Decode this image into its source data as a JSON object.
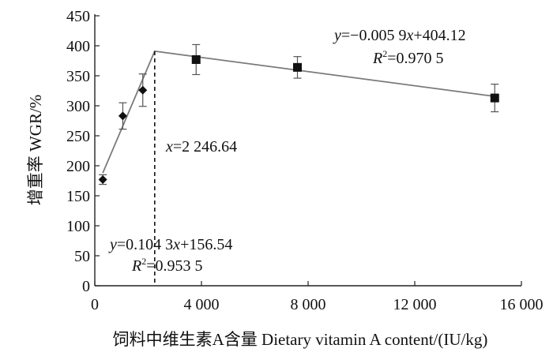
{
  "chart_data": {
    "type": "scatter",
    "title": "",
    "xlabel": "饲料中维生素A含量  Dietary vitamin A content/(IU/kg)",
    "ylabel": "增重率  WGR/%",
    "xlim": [
      0,
      16000
    ],
    "ylim": [
      0,
      450
    ],
    "x_ticks": [
      "0",
      "4 000",
      "8 000",
      "12 000",
      "16 000"
    ],
    "y_ticks": [
      "0",
      "50",
      "100",
      "150",
      "200",
      "250",
      "300",
      "350",
      "400",
      "450"
    ],
    "grid": false,
    "series": [
      {
        "marker": "diamond",
        "points": [
          {
            "x": 300,
            "y": 177,
            "err": 8
          },
          {
            "x": 1050,
            "y": 283,
            "err": 22
          },
          {
            "x": 1800,
            "y": 326,
            "err": 27
          }
        ]
      },
      {
        "marker": "square",
        "points": [
          {
            "x": 3800,
            "y": 377,
            "err": 25
          },
          {
            "x": 7600,
            "y": 364,
            "err": 18
          },
          {
            "x": 15000,
            "y": 313,
            "err": 23
          }
        ]
      }
    ],
    "regression_lines": [
      {
        "slope": 0.1043,
        "intercept": 156.54,
        "x_start": 300,
        "x_end": 2246.64
      },
      {
        "slope": -0.0059,
        "intercept": 404.12,
        "x_start": 2246.64,
        "x_end": 15000
      }
    ],
    "breakpoint_x": 2246.64,
    "annotations": {
      "eq_right_pre": "y",
      "eq_right_post": "=−0.005 9",
      "eq_right_x": "x",
      "eq_right_tail": "+404.12",
      "r2_right_r": "R",
      "r2_right_sup": "2",
      "r2_right_val": "=0.970 5",
      "eq_left_pre": "y",
      "eq_left_post": "=0.104 3",
      "eq_left_x": "x",
      "eq_left_tail": "+156.54",
      "r2_left_r": "R",
      "r2_left_sup": "2",
      "r2_left_val": "=0.953 5",
      "bp_x": "x",
      "bp_val": "=2 246.64"
    }
  }
}
